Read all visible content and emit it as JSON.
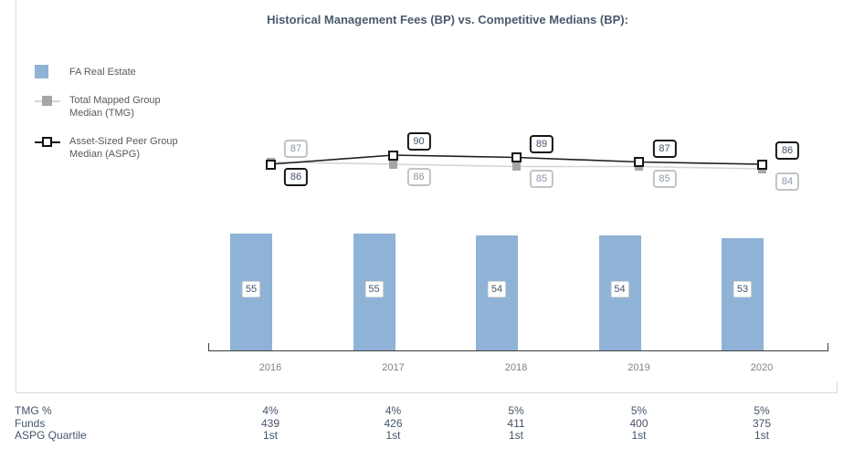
{
  "title": "Historical Management Fees (BP) vs. Competitive Medians (BP):",
  "legend": {
    "items": [
      {
        "id": "fa",
        "label": "FA Real Estate"
      },
      {
        "id": "tmg",
        "label": "Total Mapped Group\nMedian (TMG)"
      },
      {
        "id": "aspg",
        "label": "Asset-Sized Peer Group\nMedian (ASPG)"
      }
    ]
  },
  "colors": {
    "bar_fill": "#8fb3d6",
    "tmg_line": "#d6d6d6",
    "tmg_marker": "#a6a6a6",
    "aspg_line": "#1f1f1f",
    "axis": "#3c3c3c",
    "title_text": "#4a5a6d",
    "table_text": "#44546a",
    "year_text": "#808080",
    "panel_border": "#d9d9d9"
  },
  "chart_data": {
    "type": "bar+line",
    "categories": [
      "2016",
      "2017",
      "2018",
      "2019",
      "2020"
    ],
    "series": [
      {
        "name": "FA Real Estate",
        "type": "bar",
        "values": [
          55,
          55,
          54,
          54,
          53
        ]
      },
      {
        "name": "Total Mapped Group Median (TMG)",
        "type": "line",
        "values": [
          87,
          86,
          85,
          85,
          84
        ]
      },
      {
        "name": "Asset-Sized Peer Group Median (ASPG)",
        "type": "line",
        "values": [
          86,
          90,
          89,
          87,
          86
        ]
      }
    ],
    "title": "Historical Management Fees (BP) vs. Competitive Medians (BP):",
    "xlabel": "",
    "ylabel": "",
    "grid": false,
    "legend_position": "top-left",
    "data_labels": true,
    "units": "BP"
  },
  "table": {
    "rows": [
      {
        "label": "TMG %",
        "values": [
          "4%",
          "4%",
          "5%",
          "5%",
          "5%"
        ]
      },
      {
        "label": "Funds",
        "values": [
          "439",
          "426",
          "411",
          "400",
          "375"
        ]
      },
      {
        "label": "ASPG Quartile",
        "values": [
          "1st",
          "1st",
          "1st",
          "1st",
          "1st"
        ]
      }
    ]
  }
}
